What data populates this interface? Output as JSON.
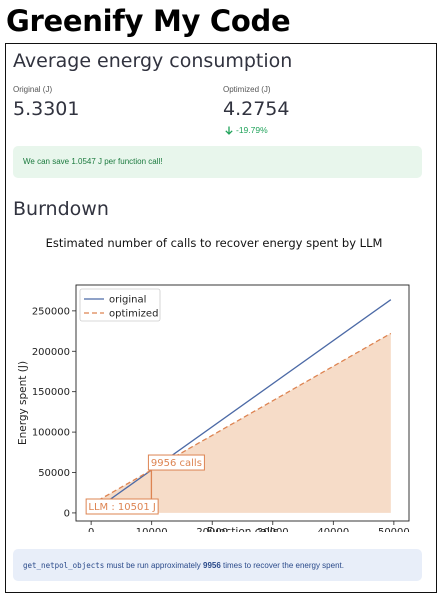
{
  "app": {
    "title": "Greenify My Code"
  },
  "energy": {
    "heading": "Average energy consumption",
    "original_label": "Original (J)",
    "original_value": "5.3301",
    "optimized_label": "Optimized (J)",
    "optimized_value": "4.2754",
    "delta": "-19.79%",
    "savings_message": "We can save 1.0547 J per function call!"
  },
  "burndown": {
    "heading": "Burndown",
    "info": {
      "function_name": "get_netpol_objects",
      "text_before": " must be run approximately ",
      "calls": "9956",
      "text_after": " times to recover the energy spent."
    }
  },
  "colors": {
    "original": "#4c6aa6",
    "optimized": "#dd8452",
    "fill": "#f6dcc8",
    "success_bg": "#e8f6ec",
    "info_bg": "#e8eef9"
  },
  "chart_data": {
    "type": "line",
    "title": "Estimated number of calls to recover energy spent by LLM",
    "xlabel": "Function calls",
    "ylabel": "Energy spent (J)",
    "xlim": [
      -2500,
      52500
    ],
    "ylim": [
      -10000,
      282000
    ],
    "xticks": [
      0,
      10000,
      20000,
      30000,
      40000,
      50000
    ],
    "yticks": [
      0,
      50000,
      100000,
      150000,
      200000,
      250000
    ],
    "legend_position": "top-left",
    "series": [
      {
        "name": "original",
        "style": "solid",
        "points": [
          [
            0,
            0
          ],
          [
            49500,
            263840
          ]
        ]
      },
      {
        "name": "optimized",
        "style": "dashed",
        "points": [
          [
            0,
            10501
          ],
          [
            49500,
            222133
          ]
        ]
      }
    ],
    "fill_between": "optimized",
    "fill_x_range": [
      0,
      49500
    ],
    "annotations": [
      {
        "label": "9956 calls",
        "x": 9956,
        "y": 53066
      },
      {
        "label": "LLM : 10501 J",
        "x": 0,
        "y": 10501
      }
    ]
  }
}
